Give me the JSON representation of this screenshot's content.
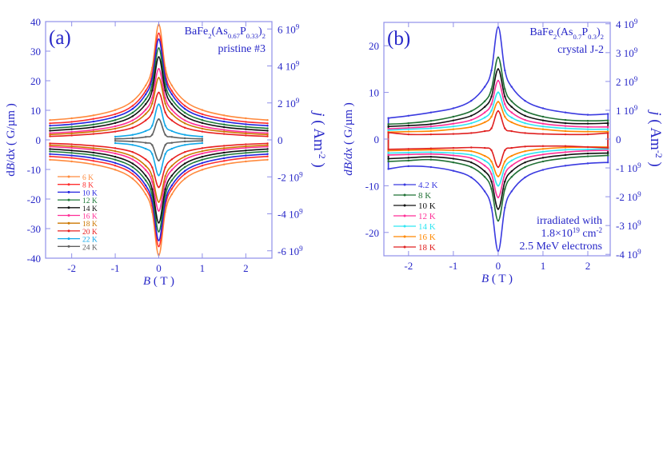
{
  "chart_data": [
    {
      "type": "line",
      "panel_label": "(a)",
      "title_parts": [
        [
          "BaFe",
          "normal"
        ],
        [
          "2",
          "sub"
        ],
        [
          "(As",
          "normal"
        ],
        [
          "0.67",
          "sub"
        ],
        [
          "P",
          "normal"
        ],
        [
          "0.33",
          "sub"
        ],
        [
          ")",
          "normal"
        ],
        [
          "2",
          "sub"
        ]
      ],
      "subtitle": "pristine #3",
      "xlabel_italic": "B",
      "xlabel_rest": " ( T )",
      "ylabel_parts": [
        [
          "d",
          "normal"
        ],
        [
          "B",
          "italic"
        ],
        [
          "/d",
          "normal"
        ],
        [
          "x",
          "italic"
        ],
        [
          " ( G/µm )",
          "normal"
        ]
      ],
      "y2label_parts": [
        [
          "j",
          "italic"
        ],
        [
          " ( Am",
          "normal"
        ],
        [
          "-2",
          "sup"
        ],
        [
          " )",
          "normal"
        ]
      ],
      "xlim": [
        -2.6,
        2.6
      ],
      "ylim": [
        -40,
        40
      ],
      "y2lim": [
        -6400000000.0,
        6400000000.0
      ],
      "xticks": [
        -2,
        -1,
        0,
        1,
        2
      ],
      "xtick_labels": [
        "-2",
        "-1",
        "0",
        "1",
        "2"
      ],
      "yticks": [
        -40,
        -30,
        -20,
        -10,
        0,
        10,
        20,
        30,
        40
      ],
      "ytick_labels": [
        "-40",
        "-30",
        "-20",
        "-10",
        "0",
        "10",
        "20",
        "30",
        "40"
      ],
      "y2ticks": [
        -6000000000.0,
        -4000000000.0,
        -2000000000.0,
        0,
        2000000000.0,
        4000000000.0,
        6000000000.0
      ],
      "y2tick_labels": [
        "-6 10^9",
        "-4 10^9",
        "-2 10^9",
        "0",
        "2 10^9",
        "4 10^9",
        "6 10^9"
      ],
      "legend_position": "bottom-left",
      "closed_loops": false,
      "x": [
        -2.5,
        -2,
        -1.5,
        -1,
        -0.6,
        -0.3,
        -0.15,
        0,
        0.15,
        0.3,
        0.6,
        1,
        1.5,
        2,
        2.5
      ],
      "series": [
        {
          "name": "6 K",
          "color": "#ff8a3d",
          "upper": [
            6.7,
            7.3,
            8.3,
            10.1,
            13.1,
            18.4,
            24.4,
            39,
            24.4,
            18.4,
            13.1,
            10.1,
            8.3,
            7.3,
            6.7
          ],
          "lower": [
            -6.7,
            -7.3,
            -8.3,
            -10.1,
            -13.1,
            -18.4,
            -24.4,
            -39,
            -24.4,
            -18.4,
            -13.1,
            -10.1,
            -8.3,
            -7.3,
            -6.7
          ]
        },
        {
          "name": "8 K",
          "color": "#ff2e2e",
          "upper": [
            5.6,
            6.1,
            7.1,
            8.7,
            11.5,
            16.6,
            22.2,
            36,
            22.2,
            16.6,
            11.5,
            8.7,
            7.1,
            6.1,
            5.6
          ],
          "lower": [
            -5.6,
            -6.1,
            -7.1,
            -8.7,
            -11.5,
            -16.6,
            -22.2,
            -36,
            -22.2,
            -16.6,
            -11.5,
            -8.7,
            -7.1,
            -6.1,
            -5.6
          ]
        },
        {
          "name": "10 K",
          "color": "#2424e0",
          "upper": [
            4.8,
            5.3,
            6.2,
            7.8,
            10.5,
            15.4,
            20.8,
            34,
            20.8,
            15.4,
            10.5,
            7.8,
            6.2,
            5.3,
            4.8
          ],
          "lower": [
            -4.8,
            -5.3,
            -6.2,
            -7.8,
            -10.5,
            -15.4,
            -20.8,
            -34,
            -20.8,
            -15.4,
            -10.5,
            -7.8,
            -6.2,
            -5.3,
            -4.8
          ]
        },
        {
          "name": "12 K",
          "color": "#1f7a3a",
          "upper": [
            3.9,
            4.4,
            5.2,
            6.7,
            9.2,
            13.7,
            18.7,
            31,
            18.7,
            13.7,
            9.2,
            6.7,
            5.2,
            4.4,
            3.9
          ],
          "lower": [
            -3.9,
            -4.4,
            -5.2,
            -6.7,
            -9.2,
            -13.7,
            -18.7,
            -31,
            -18.7,
            -13.7,
            -9.2,
            -6.7,
            -5.2,
            -4.4,
            -3.9
          ]
        },
        {
          "name": "14 K",
          "color": "#111111",
          "upper": [
            3.1,
            3.6,
            4.3,
            5.7,
            8.0,
            12.1,
            16.7,
            28,
            16.7,
            12.1,
            8.0,
            5.7,
            4.3,
            3.6,
            3.1
          ],
          "lower": [
            -3.1,
            -3.6,
            -4.3,
            -5.7,
            -8.0,
            -12.1,
            -16.7,
            -28,
            -16.7,
            -12.1,
            -8.0,
            -5.7,
            -4.3,
            -3.6,
            -3.1
          ]
        },
        {
          "name": "16 K",
          "color": "#ff2f97",
          "upper": [
            2.3,
            2.7,
            3.4,
            4.6,
            6.6,
            10.2,
            14.2,
            24,
            14.2,
            10.2,
            6.6,
            4.6,
            3.4,
            2.7,
            2.3
          ],
          "lower": [
            -2.3,
            -2.7,
            -3.4,
            -4.6,
            -6.6,
            -10.2,
            -14.2,
            -24,
            -14.2,
            -10.2,
            -6.6,
            -4.6,
            -3.4,
            -2.7,
            -2.3
          ]
        },
        {
          "name": "18 K",
          "color": "#cc7700",
          "upper": [
            1.8,
            2.2,
            2.8,
            3.8,
            5.6,
            8.8,
            12.3,
            21,
            12.3,
            8.8,
            5.6,
            3.8,
            2.8,
            2.2,
            1.8
          ],
          "lower": [
            -1.8,
            -2.2,
            -2.8,
            -3.8,
            -5.6,
            -8.8,
            -12.3,
            -21,
            -12.3,
            -8.8,
            -5.6,
            -3.8,
            -2.8,
            -2.2,
            -1.8
          ]
        },
        {
          "name": "20 K",
          "color": "#e82020",
          "upper": [
            1.2,
            1.5,
            2.0,
            2.8,
            4.1,
            6.6,
            9.3,
            16,
            9.3,
            6.6,
            4.1,
            2.8,
            2.0,
            1.5,
            1.2
          ],
          "lower": [
            -1.2,
            -1.5,
            -2.0,
            -2.8,
            -4.1,
            -6.6,
            -9.3,
            -16,
            -9.3,
            -6.6,
            -4.1,
            -2.8,
            -2.0,
            -1.5,
            -1.2
          ]
        },
        {
          "name": "22 K",
          "color": "#12a8e8",
          "upper": [
            null,
            null,
            null,
            1.1,
            1.7,
            3.0,
            4.8,
            12,
            4.8,
            3.0,
            1.7,
            1.1,
            null,
            null,
            null
          ],
          "lower": [
            null,
            null,
            null,
            -1.1,
            -1.7,
            -3.0,
            -4.8,
            -12,
            -4.8,
            -3.0,
            -1.7,
            -1.1,
            null,
            null,
            null
          ]
        },
        {
          "name": "24 K",
          "color": "#5f5f5f",
          "upper": [
            null,
            null,
            null,
            0.34,
            0.54,
            1.0,
            1.75,
            7,
            1.75,
            1.0,
            0.54,
            0.34,
            null,
            null,
            null
          ],
          "lower": [
            null,
            null,
            null,
            -0.34,
            -0.54,
            -1.0,
            -1.75,
            -7,
            -1.75,
            -1.0,
            -0.54,
            -0.34,
            null,
            null,
            null
          ]
        }
      ]
    },
    {
      "type": "line",
      "panel_label": "(b)",
      "title_parts": [
        [
          "BaFe",
          "normal"
        ],
        [
          "2",
          "sub"
        ],
        [
          "(As",
          "normal"
        ],
        [
          "0.7",
          "sub"
        ],
        [
          "P",
          "normal"
        ],
        [
          "0.3",
          "sub"
        ],
        [
          ")",
          "normal"
        ],
        [
          "2",
          "sub"
        ]
      ],
      "subtitle": "crystal J-2",
      "annotation": [
        "irradiated with",
        "1.8×10^19 cm^-2",
        "2.5 MeV electrons"
      ],
      "xlabel_italic": "B",
      "xlabel_rest": " ( T )",
      "ylabel_parts": [
        [
          "dB/dx",
          "italic"
        ],
        [
          " ( G/µm )",
          "normal"
        ]
      ],
      "y2label_parts": [
        [
          "j",
          "italic"
        ],
        [
          " ( Am",
          "normal"
        ],
        [
          "-2",
          "sup"
        ],
        [
          " )",
          "normal"
        ]
      ],
      "xlim": [
        -2.55,
        2.5
      ],
      "ylim": [
        -25,
        25
      ],
      "y2lim": [
        -4050000000.0,
        4050000000.0
      ],
      "xticks": [
        -2,
        -1,
        0,
        1,
        2
      ],
      "xtick_labels": [
        "-2",
        "-1",
        "0",
        "1",
        "2"
      ],
      "yticks": [
        -20,
        -10,
        0,
        10,
        20
      ],
      "ytick_labels": [
        "-20",
        "-10",
        "0",
        "10",
        "20"
      ],
      "y2ticks": [
        -4000000000.0,
        -3000000000.0,
        -2000000000.0,
        -1000000000.0,
        0,
        1000000000.0,
        2000000000.0,
        3000000000.0,
        4000000000.0
      ],
      "y2tick_labels": [
        "-4 10^9",
        "-3 10^9",
        "-2 10^9",
        "-1 10^9",
        "0",
        "1 10^9",
        "2 10^9",
        "3 10^9",
        "4 10^9"
      ],
      "legend_position": "bottom-left",
      "closed_loops": true,
      "x": [
        -2.45,
        -2,
        -1.5,
        -1,
        -0.6,
        -0.3,
        -0.15,
        0,
        0.15,
        0.3,
        0.6,
        1,
        1.5,
        2,
        2.45
      ],
      "series": [
        {
          "name": "4.2 K",
          "color": "#3a3ae0",
          "upper": [
            4.5,
            5.0,
            5.7,
            6.6,
            8.2,
            11.2,
            14.7,
            24,
            14.7,
            11.2,
            8.2,
            6.6,
            5.7,
            5.2,
            5.4
          ],
          "lower": [
            -6.4,
            -5.8,
            -6.0,
            -6.8,
            -8.2,
            -11.2,
            -14.7,
            -24,
            -14.7,
            -11.2,
            -8.2,
            -6.6,
            -5.7,
            -5.2,
            -5.0
          ]
        },
        {
          "name": "8 K",
          "color": "#1f7034",
          "upper": [
            3.2,
            3.4,
            3.9,
            4.8,
            6.0,
            8.1,
            10.7,
            17.5,
            10.7,
            8.1,
            6.0,
            4.8,
            4.1,
            3.9,
            4.0
          ],
          "lower": [
            -4.8,
            -4.6,
            -4.4,
            -5.0,
            -6.0,
            -8.1,
            -10.7,
            -17.5,
            -10.7,
            -8.1,
            -6.0,
            -4.8,
            -4.1,
            -3.7,
            -3.5
          ]
        },
        {
          "name": "10 K",
          "color": "#111111",
          "upper": [
            2.7,
            2.9,
            3.2,
            4.0,
            5.0,
            6.9,
            9.1,
            15,
            9.1,
            6.9,
            5.0,
            4.0,
            3.4,
            3.3,
            3.4
          ],
          "lower": [
            -4.2,
            -4.0,
            -3.8,
            -4.2,
            -5.0,
            -6.9,
            -9.1,
            -15,
            -9.1,
            -6.9,
            -5.0,
            -4.0,
            -3.4,
            -3.1,
            -3.0
          ]
        },
        {
          "name": "12 K",
          "color": "#ff2f97",
          "upper": [
            2.2,
            2.4,
            2.7,
            3.3,
            4.1,
            5.7,
            7.5,
            12.5,
            7.5,
            5.7,
            4.1,
            3.3,
            2.8,
            2.6,
            2.6
          ],
          "lower": [
            -3.4,
            -3.3,
            -3.2,
            -3.5,
            -4.1,
            -5.7,
            -7.5,
            -12.5,
            -7.5,
            -5.7,
            -4.1,
            -3.3,
            -2.8,
            -2.5,
            -2.4
          ]
        },
        {
          "name": "14 K",
          "color": "#2ee6f2",
          "upper": [
            1.9,
            2.1,
            2.3,
            2.7,
            3.4,
            4.6,
            6.1,
            10,
            6.1,
            4.6,
            3.4,
            2.7,
            2.3,
            2.1,
            2.1
          ],
          "lower": [
            -3.0,
            -2.9,
            -2.8,
            -3.0,
            -3.4,
            -4.6,
            -6.1,
            -10,
            -6.1,
            -4.6,
            -3.4,
            -2.7,
            -2.3,
            -2.2,
            -2.1
          ]
        },
        {
          "name": "16 K",
          "color": "#ff8800",
          "upper": [
            1.5,
            1.6,
            1.7,
            2.1,
            2.6,
            3.6,
            4.8,
            8,
            4.8,
            3.6,
            2.6,
            2.1,
            1.7,
            1.6,
            1.6
          ],
          "lower": [
            -2.5,
            -2.4,
            -2.3,
            -2.4,
            -2.6,
            -3.6,
            -4.8,
            -8,
            -4.8,
            -3.6,
            -2.6,
            -2.1,
            -1.8,
            -1.7,
            -1.7
          ]
        },
        {
          "name": "18 K",
          "color": "#e02020",
          "upper": [
            1.4,
            1.0,
            1.0,
            1.1,
            1.3,
            1.7,
            2.3,
            6,
            2.3,
            1.7,
            1.3,
            1.1,
            1.0,
            1.0,
            1.3
          ],
          "lower": [
            -2.2,
            -2.1,
            -2.0,
            -1.9,
            -1.8,
            -1.9,
            -2.4,
            -6,
            -2.4,
            -1.9,
            -1.6,
            -1.5,
            -1.5,
            -1.7,
            -1.9
          ]
        }
      ]
    }
  ]
}
